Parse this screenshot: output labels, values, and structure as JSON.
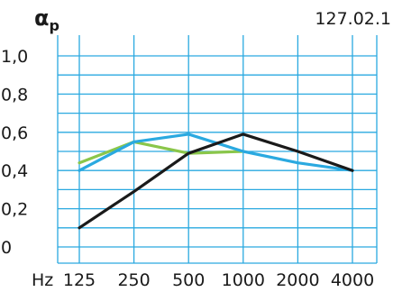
{
  "chart_data": {
    "type": "line",
    "title_main": "α",
    "title_sub": "p",
    "code": "127.02.1",
    "x_unit": "Hz",
    "categories": [
      "125",
      "250",
      "500",
      "1000",
      "2000",
      "4000"
    ],
    "y_ticks": [
      "0",
      "0,2",
      "0,4",
      "0,6",
      "0,8",
      "1,0"
    ],
    "ylim": [
      0,
      1.0
    ],
    "grid": true,
    "grid_color": "#2aa9e0",
    "series": [
      {
        "color": "#8ac64a",
        "values": [
          0.44,
          0.55,
          0.49,
          0.5,
          null,
          null
        ]
      },
      {
        "color": "#2aa9e0",
        "values": [
          0.4,
          0.55,
          0.59,
          0.5,
          0.44,
          0.4
        ]
      },
      {
        "color": "#1a1a1a",
        "values": [
          0.1,
          0.29,
          0.49,
          0.59,
          0.5,
          0.4
        ]
      }
    ]
  }
}
